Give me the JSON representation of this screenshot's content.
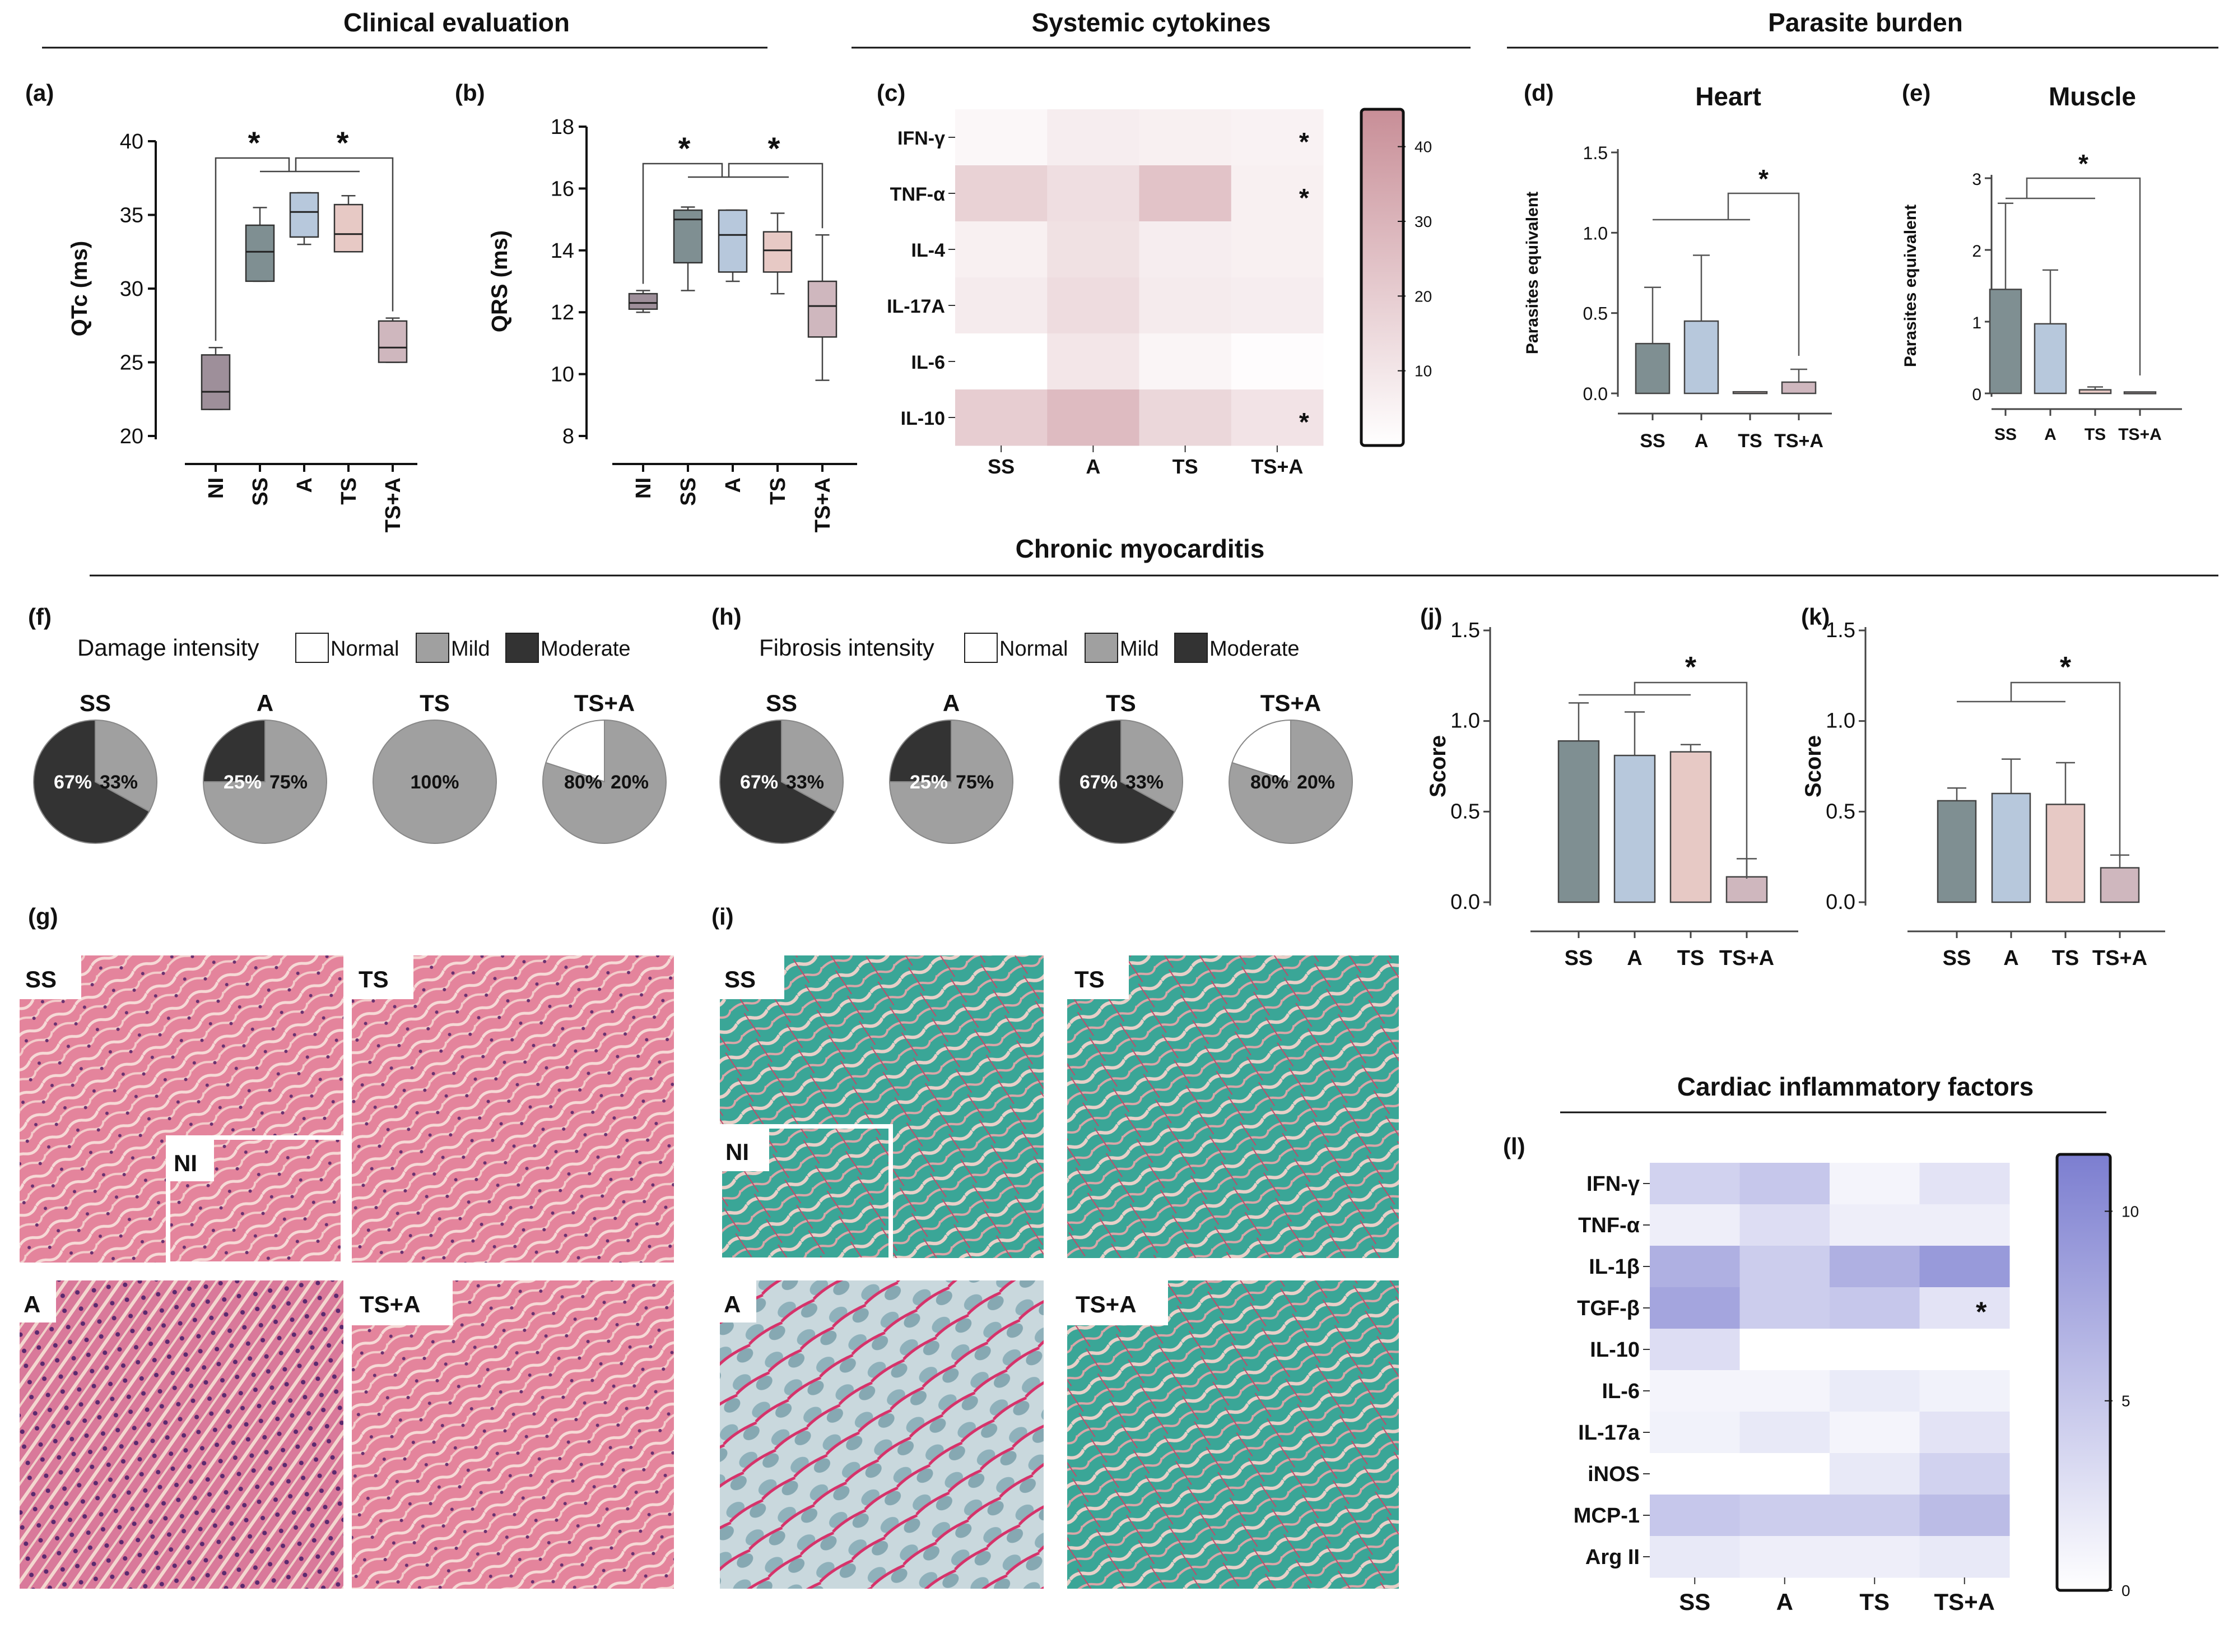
{
  "sections": {
    "clinical": "Clinical evaluation",
    "cytokines": "Systemic cytokines",
    "parasite": "Parasite burden",
    "myocarditis": "Chronic myocarditis",
    "cardiac": "Cardiac inflammatory factors"
  },
  "panel_labels": {
    "a": "(a)",
    "b": "(b)",
    "c": "(c)",
    "d": "(d)",
    "e": "(e)",
    "f": "(f)",
    "g": "(g)",
    "h": "(h)",
    "i": "(i)",
    "j": "(j)",
    "k": "(k)",
    "l": "(l)"
  },
  "colors": {
    "NI": "#9e8f9a",
    "SS": "#7f8f92",
    "A": "#b7c8dc",
    "TS": "#e7c9c5",
    "TSA": "#cfb7be",
    "mild": "#a0a0a0",
    "moderate": "#333333",
    "cytokine_heat": "#c88e97",
    "cardiac_heat": "#7c7ed0",
    "he_stain": "#e2819a",
    "fibrosis_stain": "#3fa89a"
  },
  "chart_data": [
    {
      "id": "a",
      "type": "box",
      "ylabel": "QTc (ms)",
      "ylim": [
        20,
        40
      ],
      "yticks": [
        20,
        25,
        30,
        35,
        40
      ],
      "categories": [
        "NI",
        "SS",
        "A",
        "TS",
        "TS+A"
      ],
      "boxes": [
        {
          "min": 21.8,
          "q1": 21.8,
          "median": 23,
          "q3": 25.5,
          "max": 26
        },
        {
          "min": 30.5,
          "q1": 30.5,
          "median": 32.5,
          "q3": 34.3,
          "max": 35.5
        },
        {
          "min": 33,
          "q1": 33.5,
          "median": 35.2,
          "q3": 36.5,
          "max": 36.5
        },
        {
          "min": 32.5,
          "q1": 32.5,
          "median": 33.7,
          "q3": 35.7,
          "max": 36.3
        },
        {
          "min": 25,
          "q1": 25,
          "median": 26,
          "q3": 27.8,
          "max": 28
        }
      ],
      "significance": [
        "*",
        "*"
      ]
    },
    {
      "id": "b",
      "type": "box",
      "ylabel": "QRS (ms)",
      "ylim": [
        8,
        18
      ],
      "yticks": [
        8,
        10,
        12,
        14,
        16,
        18
      ],
      "categories": [
        "NI",
        "SS",
        "A",
        "TS",
        "TS+A"
      ],
      "boxes": [
        {
          "min": 12,
          "q1": 12.1,
          "median": 12.3,
          "q3": 12.6,
          "max": 12.7
        },
        {
          "min": 12.7,
          "q1": 13.6,
          "median": 15,
          "q3": 15.3,
          "max": 15.4
        },
        {
          "min": 13,
          "q1": 13.3,
          "median": 14.5,
          "q3": 15.3,
          "max": 15.3
        },
        {
          "min": 12.6,
          "q1": 13.3,
          "median": 14,
          "q3": 14.6,
          "max": 15.2
        },
        {
          "min": 9.8,
          "q1": 11.2,
          "median": 12.2,
          "q3": 13,
          "max": 14.5
        }
      ],
      "significance": [
        "*",
        "*"
      ]
    },
    {
      "id": "c",
      "type": "heatmap",
      "rows": [
        "IFN-γ",
        "TNF-α",
        "IL-4",
        "IL-17A",
        "IL-6",
        "IL-10"
      ],
      "columns": [
        "SS",
        "A",
        "TS",
        "TS+A"
      ],
      "values": [
        [
          3,
          7,
          6,
          5
        ],
        [
          18,
          13,
          24,
          6
        ],
        [
          6,
          12,
          7,
          6
        ],
        [
          8,
          14,
          8,
          7
        ],
        [
          0,
          10,
          4,
          1
        ],
        [
          20,
          27,
          16,
          11
        ]
      ],
      "colorbar": {
        "min": 0,
        "max": 45,
        "ticks": [
          10,
          20,
          30,
          40
        ]
      },
      "annotations": [
        {
          "row": 0,
          "col": 3,
          "text": "*"
        },
        {
          "row": 1,
          "col": 3,
          "text": "*"
        },
        {
          "row": 5,
          "col": 3,
          "text": "*"
        }
      ]
    },
    {
      "id": "d",
      "type": "bar",
      "title": "Heart",
      "ylabel": "Parasites equivalent",
      "ylim": [
        0,
        1.5
      ],
      "yticks": [
        "0.0",
        "0.5",
        "1.0",
        "1.5"
      ],
      "categories": [
        "SS",
        "A",
        "TS",
        "TS+A"
      ],
      "values": [
        0.31,
        0.45,
        0.01,
        0.07
      ],
      "errors": [
        0.35,
        0.41,
        0.0,
        0.08
      ],
      "significance": [
        "*"
      ]
    },
    {
      "id": "e",
      "type": "bar",
      "title": "Muscle",
      "ylabel": "Parasites equivalent",
      "ylim": [
        0,
        3
      ],
      "yticks": [
        "0",
        "1",
        "2",
        "3"
      ],
      "categories": [
        "SS",
        "A",
        "TS",
        "TS+A"
      ],
      "values": [
        1.45,
        0.97,
        0.05,
        0.02
      ],
      "errors": [
        1.2,
        0.75,
        0.04,
        0.0
      ],
      "significance": [
        "*"
      ]
    },
    {
      "id": "f",
      "type": "pie",
      "legend_title": "Damage intensity",
      "legend": [
        "Normal",
        "Mild",
        "Moderate"
      ],
      "pies": [
        {
          "label": "SS",
          "slices": [
            {
              "category": "Moderate",
              "value": 67,
              "text": "67%"
            },
            {
              "category": "Mild",
              "value": 33,
              "text": "33%"
            }
          ]
        },
        {
          "label": "A",
          "slices": [
            {
              "category": "Moderate",
              "value": 25,
              "text": "25%"
            },
            {
              "category": "Mild",
              "value": 75,
              "text": "75%"
            }
          ]
        },
        {
          "label": "TS",
          "slices": [
            {
              "category": "Mild",
              "value": 100,
              "text": "100%"
            }
          ]
        },
        {
          "label": "TS+A",
          "slices": [
            {
              "category": "Normal",
              "value": 20,
              "text": "20%"
            },
            {
              "category": "Mild",
              "value": 80,
              "text": "80%"
            }
          ]
        }
      ]
    },
    {
      "id": "h",
      "type": "pie",
      "legend_title": "Fibrosis intensity",
      "legend": [
        "Normal",
        "Mild",
        "Moderate"
      ],
      "pies": [
        {
          "label": "SS",
          "slices": [
            {
              "category": "Moderate",
              "value": 67,
              "text": "67%"
            },
            {
              "category": "Mild",
              "value": 33,
              "text": "33%"
            }
          ]
        },
        {
          "label": "A",
          "slices": [
            {
              "category": "Moderate",
              "value": 25,
              "text": "25%"
            },
            {
              "category": "Mild",
              "value": 75,
              "text": "75%"
            }
          ]
        },
        {
          "label": "TS",
          "slices": [
            {
              "category": "Moderate",
              "value": 67,
              "text": "67%"
            },
            {
              "category": "Mild",
              "value": 33,
              "text": "33%"
            }
          ]
        },
        {
          "label": "TS+A",
          "slices": [
            {
              "category": "Normal",
              "value": 20,
              "text": "20%"
            },
            {
              "category": "Mild",
              "value": 80,
              "text": "80%"
            }
          ]
        }
      ]
    },
    {
      "id": "j",
      "type": "bar",
      "ylabel": "Score",
      "ylim": [
        0,
        1.5
      ],
      "yticks": [
        "0.0",
        "0.5",
        "1.0",
        "1.5"
      ],
      "categories": [
        "SS",
        "A",
        "TS",
        "TS+A"
      ],
      "values": [
        0.89,
        0.81,
        0.83,
        0.14
      ],
      "errors": [
        0.21,
        0.24,
        0.04,
        0.1
      ],
      "significance": [
        "*"
      ]
    },
    {
      "id": "k",
      "type": "bar",
      "ylabel": "Score",
      "ylim": [
        0,
        1.5
      ],
      "yticks": [
        "0.0",
        "0.5",
        "1.0",
        "1.5"
      ],
      "categories": [
        "SS",
        "A",
        "TS",
        "TS+A"
      ],
      "values": [
        0.56,
        0.6,
        0.54,
        0.19
      ],
      "errors": [
        0.07,
        0.19,
        0.23,
        0.07
      ],
      "significance": [
        "*"
      ]
    },
    {
      "id": "l",
      "type": "heatmap",
      "rows": [
        "IFN-γ",
        "TNF-α",
        "IL-1β",
        "TGF-β",
        "IL-10",
        "IL-6",
        "IL-17a",
        "iNOS",
        "MCP-1",
        "Arg II"
      ],
      "columns": [
        "SS",
        "A",
        "TS",
        "TS+A"
      ],
      "values": [
        [
          4,
          5,
          1,
          2.5
        ],
        [
          1.5,
          3,
          1.5,
          1.5
        ],
        [
          7,
          4.5,
          7,
          9
        ],
        [
          8,
          4.5,
          5,
          2.5
        ],
        [
          3,
          0,
          0,
          0
        ],
        [
          1,
          1,
          1.8,
          1.2
        ],
        [
          1.2,
          2,
          1,
          2.5
        ],
        [
          0,
          0,
          2,
          4
        ],
        [
          5,
          4.5,
          4.5,
          6
        ],
        [
          2,
          1.5,
          1.5,
          2
        ]
      ],
      "colorbar": {
        "min": 0,
        "max": 11.5,
        "ticks": [
          0,
          5,
          10
        ]
      },
      "annotations": [
        {
          "row": 3,
          "col": 3,
          "text": "*"
        }
      ]
    }
  ],
  "histology_g": [
    "SS",
    "TS",
    "NI",
    "A",
    "TS+A"
  ],
  "histology_i": [
    "SS",
    "TS",
    "NI",
    "A",
    "TS+A"
  ]
}
